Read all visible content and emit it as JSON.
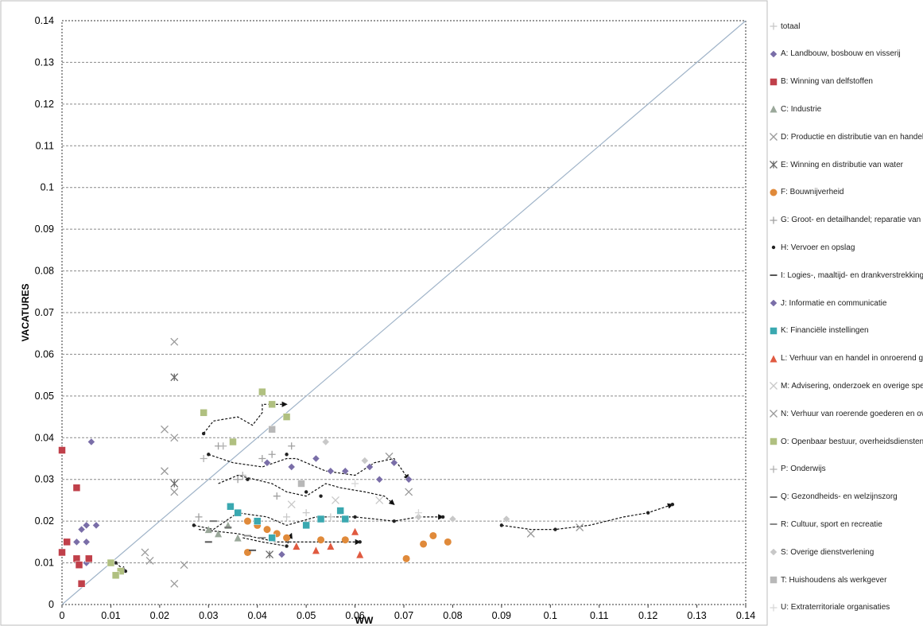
{
  "chart_data": {
    "type": "scatter",
    "title": "",
    "xlabel": "WW",
    "ylabel": "VACATURES",
    "xlim": [
      0,
      0.14
    ],
    "ylim": [
      0,
      0.14
    ],
    "x_ticks": [
      "0",
      "0.01",
      "0.02",
      "0.03",
      "0.04",
      "0.05",
      "0.06",
      "0.07",
      "0.08",
      "0.09",
      "0.1",
      "0.11",
      "0.12",
      "0.13",
      "0.14"
    ],
    "y_ticks": [
      "0",
      "0.01",
      "0.02",
      "0.03",
      "0.04",
      "0.05",
      "0.06",
      "0.07",
      "0.08",
      "0.09",
      "0.1",
      "0.11",
      "0.12",
      "0.13",
      "0.14"
    ],
    "grid": "horizontal-dashed",
    "legend_position": "right",
    "diagonal_line": [
      [
        0,
        0
      ],
      [
        0.14,
        0.14
      ]
    ],
    "series": [
      {
        "name": "totaal",
        "color": "#c8c8c8",
        "marker": "plus",
        "points": [
          [
            0.046,
            0.021
          ],
          [
            0.05,
            0.022
          ],
          [
            0.055,
            0.021
          ]
        ]
      },
      {
        "name": "A: Landbouw, bosbouw en visserij",
        "color": "#7a6ea8",
        "marker": "diamond",
        "points": [
          [
            0.004,
            0.018
          ],
          [
            0.005,
            0.019
          ],
          [
            0.003,
            0.015
          ],
          [
            0.005,
            0.015
          ],
          [
            0.007,
            0.019
          ],
          [
            0.006,
            0.039
          ],
          [
            0.005,
            0.01
          ]
        ]
      },
      {
        "name": "B: Winning van delfstoffen",
        "color": "#c0404a",
        "marker": "square",
        "points": [
          [
            0,
            0.037
          ],
          [
            0.003,
            0.028
          ],
          [
            0.001,
            0.015
          ],
          [
            0,
            0.0125
          ],
          [
            0.003,
            0.011
          ],
          [
            0.0035,
            0.0095
          ],
          [
            0.0055,
            0.011
          ],
          [
            0.004,
            0.005
          ]
        ]
      },
      {
        "name": "C: Industrie",
        "color": "#9aa89a",
        "marker": "triangle",
        "points": [
          [
            0.03,
            0.018
          ],
          [
            0.032,
            0.017
          ],
          [
            0.034,
            0.019
          ],
          [
            0.036,
            0.016
          ]
        ]
      },
      {
        "name": "D: Productie en distributie van en handel in elektriciteit",
        "color": "#9a9a9a",
        "marker": "x",
        "points": [
          [
            0.023,
            0.063
          ],
          [
            0.021,
            0.042
          ],
          [
            0.023,
            0.04
          ],
          [
            0.021,
            0.032
          ],
          [
            0.023,
            0.027
          ],
          [
            0.017,
            0.0125
          ],
          [
            0.018,
            0.0105
          ],
          [
            0.023,
            0.005
          ],
          [
            0.025,
            0.0095
          ]
        ]
      },
      {
        "name": "E: Winning en distributie van water",
        "color": "#6a6a6a",
        "marker": "star",
        "points": [
          [
            0.023,
            0.0545
          ],
          [
            0.023,
            0.029
          ],
          [
            0.0425,
            0.012
          ]
        ]
      },
      {
        "name": "F: Bouwnijverheid",
        "color": "#e08a3a",
        "marker": "circle",
        "points": [
          [
            0.038,
            0.02
          ],
          [
            0.04,
            0.019
          ],
          [
            0.042,
            0.018
          ],
          [
            0.044,
            0.017
          ],
          [
            0.046,
            0.016
          ],
          [
            0.053,
            0.0155
          ],
          [
            0.058,
            0.0155
          ],
          [
            0.074,
            0.0145
          ],
          [
            0.076,
            0.0165
          ],
          [
            0.079,
            0.015
          ],
          [
            0.0705,
            0.011
          ],
          [
            0.038,
            0.0125
          ]
        ]
      },
      {
        "name": "G: Groot- en detailhandel; reparatie van auto's",
        "color": "#a0a0a0",
        "marker": "plus",
        "points": [
          [
            0.032,
            0.038
          ],
          [
            0.036,
            0.03
          ],
          [
            0.041,
            0.035
          ],
          [
            0.043,
            0.036
          ],
          [
            0.047,
            0.038
          ],
          [
            0.028,
            0.021
          ],
          [
            0.044,
            0.026
          ]
        ]
      },
      {
        "name": "H: Vervoer en opslag",
        "color": "#222222",
        "marker": "dot",
        "points": [
          [
            0.029,
            0.041
          ],
          [
            0.03,
            0.036
          ],
          [
            0.038,
            0.03
          ],
          [
            0.046,
            0.036
          ],
          [
            0.05,
            0.027
          ],
          [
            0.053,
            0.026
          ],
          [
            0.06,
            0.021
          ],
          [
            0.068,
            0.02
          ],
          [
            0.078,
            0.021
          ],
          [
            0.09,
            0.019
          ],
          [
            0.101,
            0.018
          ],
          [
            0.12,
            0.022
          ],
          [
            0.125,
            0.024
          ],
          [
            0.027,
            0.019
          ],
          [
            0.036,
            0.022
          ],
          [
            0.046,
            0.014
          ],
          [
            0.061,
            0.015
          ],
          [
            0.011,
            0.01
          ],
          [
            0.013,
            0.008
          ]
        ]
      },
      {
        "name": "I: Logies-, maaltijd- en drankverstrekking",
        "color": "#555555",
        "marker": "dash",
        "points": [
          [
            0.03,
            0.015
          ],
          [
            0.039,
            0.013
          ]
        ]
      },
      {
        "name": "J: Informatie en communicatie",
        "color": "#7a6ea8",
        "marker": "diamond",
        "points": [
          [
            0.042,
            0.034
          ],
          [
            0.047,
            0.033
          ],
          [
            0.052,
            0.035
          ],
          [
            0.055,
            0.032
          ],
          [
            0.058,
            0.032
          ],
          [
            0.063,
            0.033
          ],
          [
            0.065,
            0.03
          ],
          [
            0.068,
            0.034
          ],
          [
            0.071,
            0.03
          ],
          [
            0.045,
            0.012
          ]
        ]
      },
      {
        "name": "K: Financiële instellingen",
        "color": "#3aa8b0",
        "marker": "square",
        "points": [
          [
            0.0345,
            0.0235
          ],
          [
            0.036,
            0.022
          ],
          [
            0.04,
            0.02
          ],
          [
            0.043,
            0.016
          ],
          [
            0.05,
            0.019
          ],
          [
            0.053,
            0.0205
          ],
          [
            0.057,
            0.0225
          ],
          [
            0.058,
            0.0205
          ]
        ]
      },
      {
        "name": "L: Verhuur van en handel in onroerend goed",
        "color": "#e05a40",
        "marker": "triangle",
        "points": [
          [
            0.052,
            0.013
          ],
          [
            0.055,
            0.014
          ],
          [
            0.06,
            0.0175
          ],
          [
            0.061,
            0.012
          ],
          [
            0.048,
            0.014
          ]
        ]
      },
      {
        "name": "M: Advisering, onderzoek en overige specialistische zakelijke diensten",
        "color": "#c8c8c8",
        "marker": "x",
        "points": [
          [
            0.047,
            0.024
          ],
          [
            0.056,
            0.025
          ],
          [
            0.065,
            0.025
          ]
        ]
      },
      {
        "name": "N: Verhuur van roerende goederen en overige zakelijke diensten",
        "color": "#9a9a9a",
        "marker": "x",
        "points": [
          [
            0.067,
            0.0355
          ],
          [
            0.071,
            0.027
          ],
          [
            0.096,
            0.017
          ],
          [
            0.106,
            0.0185
          ]
        ]
      },
      {
        "name": "O: Openbaar bestuur, overheidsdiensten",
        "color": "#b0c080",
        "marker": "square",
        "points": [
          [
            0.01,
            0.01
          ],
          [
            0.012,
            0.008
          ],
          [
            0.029,
            0.046
          ],
          [
            0.035,
            0.039
          ],
          [
            0.041,
            0.051
          ],
          [
            0.043,
            0.048
          ],
          [
            0.046,
            0.045
          ],
          [
            0.011,
            0.007
          ]
        ]
      },
      {
        "name": "P: Onderwijs",
        "color": "#b0b0b0",
        "marker": "plus",
        "points": [
          [
            0.029,
            0.035
          ],
          [
            0.033,
            0.038
          ],
          [
            0.037,
            0.031
          ]
        ]
      },
      {
        "name": "Q: Gezondheids- en welzijnszorg",
        "color": "#777777",
        "marker": "dash",
        "points": [
          [
            0.031,
            0.02
          ],
          [
            0.034,
            0.0185
          ]
        ]
      },
      {
        "name": "R: Cultuur, sport en recreatie",
        "color": "#888888",
        "marker": "dash",
        "points": [
          [
            0.038,
            0.0165
          ],
          [
            0.041,
            0.016
          ]
        ]
      },
      {
        "name": "S: Overige dienstverlening",
        "color": "#c8c8c8",
        "marker": "diamond",
        "points": [
          [
            0.054,
            0.039
          ],
          [
            0.062,
            0.0345
          ],
          [
            0.073,
            0.021
          ],
          [
            0.08,
            0.0205
          ],
          [
            0.091,
            0.0205
          ]
        ]
      },
      {
        "name": "T: Huishoudens als werkgever",
        "color": "#b8b8b8",
        "marker": "square",
        "points": [
          [
            0.043,
            0.042
          ],
          [
            0.049,
            0.029
          ]
        ]
      },
      {
        "name": "U: Extraterritoriale organisaties",
        "color": "#d8d8d8",
        "marker": "plus",
        "points": [
          [
            0.06,
            0.029
          ],
          [
            0.073,
            0.022
          ]
        ]
      }
    ],
    "trajectories": [
      [
        [
          0.029,
          0.041
        ],
        [
          0.031,
          0.044
        ],
        [
          0.036,
          0.045
        ],
        [
          0.039,
          0.043
        ],
        [
          0.041,
          0.046
        ],
        [
          0.041,
          0.048
        ],
        [
          0.046,
          0.048
        ]
      ],
      [
        [
          0.03,
          0.036
        ],
        [
          0.035,
          0.034
        ],
        [
          0.041,
          0.033
        ],
        [
          0.046,
          0.035
        ],
        [
          0.048,
          0.035
        ],
        [
          0.054,
          0.032
        ],
        [
          0.06,
          0.031
        ],
        [
          0.064,
          0.034
        ],
        [
          0.068,
          0.035
        ],
        [
          0.071,
          0.03
        ]
      ],
      [
        [
          0.032,
          0.029
        ],
        [
          0.036,
          0.031
        ],
        [
          0.043,
          0.029
        ],
        [
          0.046,
          0.027
        ],
        [
          0.05,
          0.026
        ],
        [
          0.054,
          0.029
        ],
        [
          0.057,
          0.028
        ],
        [
          0.062,
          0.027
        ],
        [
          0.066,
          0.026
        ],
        [
          0.068,
          0.024
        ]
      ],
      [
        [
          0.027,
          0.019
        ],
        [
          0.031,
          0.018
        ],
        [
          0.036,
          0.022
        ],
        [
          0.042,
          0.021
        ],
        [
          0.046,
          0.019
        ],
        [
          0.052,
          0.021
        ],
        [
          0.06,
          0.021
        ],
        [
          0.068,
          0.02
        ],
        [
          0.073,
          0.021
        ],
        [
          0.078,
          0.021
        ]
      ],
      [
        [
          0.09,
          0.019
        ],
        [
          0.096,
          0.018
        ],
        [
          0.101,
          0.018
        ],
        [
          0.108,
          0.019
        ],
        [
          0.115,
          0.021
        ],
        [
          0.12,
          0.022
        ],
        [
          0.125,
          0.024
        ]
      ],
      [
        [
          0.028,
          0.018
        ],
        [
          0.036,
          0.017
        ],
        [
          0.044,
          0.015
        ],
        [
          0.052,
          0.015
        ],
        [
          0.061,
          0.015
        ]
      ],
      [
        [
          0.037,
          0.016
        ],
        [
          0.041,
          0.015
        ],
        [
          0.046,
          0.014
        ],
        [
          0.047,
          0.017
        ]
      ],
      [
        [
          0.011,
          0.01
        ],
        [
          0.012,
          0.009
        ],
        [
          0.013,
          0.008
        ]
      ]
    ]
  }
}
